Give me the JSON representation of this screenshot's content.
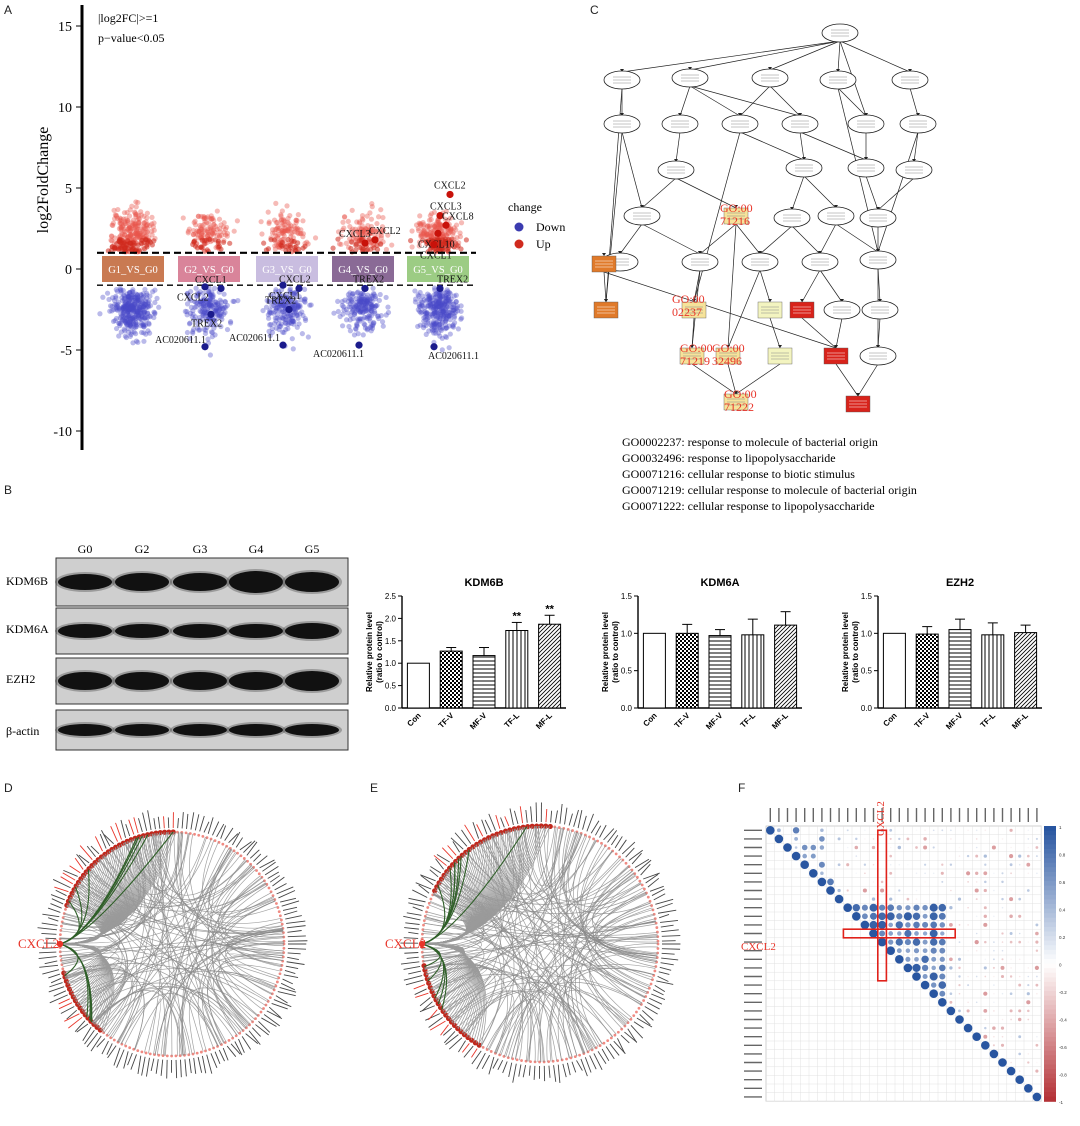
{
  "panels": {
    "a": "A",
    "b": "B",
    "c": "C",
    "d": "D",
    "e": "E",
    "f": "F"
  },
  "volcano": {
    "ylabel": "log2FoldChange",
    "yticks": [
      15,
      10,
      5,
      0,
      -5,
      -10
    ],
    "ylim": [
      -11,
      16
    ],
    "thresholds": [
      1,
      -1
    ],
    "annot_fc": "|log2FC|>=1",
    "annot_p": "p−value<0.05",
    "legend_title": "change",
    "legend_down": "Down",
    "legend_up": "Up",
    "color_down": "#3b3bb0",
    "color_up": "#d02a1e",
    "groups": [
      {
        "label": "G1_VS_G0",
        "color": "#c97a52"
      },
      {
        "label": "G2_VS_G0",
        "color": "#d9849a"
      },
      {
        "label": "G3_VS_G0",
        "color": "#c9bde0"
      },
      {
        "label": "G4_VS_G0",
        "color": "#8a6a96"
      },
      {
        "label": "G5_VS_G0",
        "color": "#9ccc84"
      }
    ],
    "genes": [
      {
        "g": 1,
        "name": "CXCL2",
        "y": -1.2,
        "dir": "down"
      },
      {
        "g": 1,
        "name": "CXCL1",
        "y": -1.1,
        "dir": "down"
      },
      {
        "g": 1,
        "name": "TREX2",
        "y": -2.8,
        "dir": "down"
      },
      {
        "g": 1,
        "name": "AC020611.1",
        "y": -4.8,
        "dir": "down"
      },
      {
        "g": 2,
        "name": "CXCL2",
        "y": -1.2,
        "dir": "down"
      },
      {
        "g": 2,
        "name": "CXCL1",
        "y": -1.0,
        "dir": "down"
      },
      {
        "g": 2,
        "name": "TREX2",
        "y": -2.5,
        "dir": "down"
      },
      {
        "g": 2,
        "name": "AC020611.1",
        "y": -4.7,
        "dir": "down"
      },
      {
        "g": 3,
        "name": "CXCL2",
        "y": 1.8,
        "dir": "up"
      },
      {
        "g": 3,
        "name": "CXCL3",
        "y": 1.6,
        "dir": "up"
      },
      {
        "g": 3,
        "name": "TREX2",
        "y": -1.2,
        "dir": "down"
      },
      {
        "g": 3,
        "name": "AC020611.1",
        "y": -4.7,
        "dir": "down"
      },
      {
        "g": 4,
        "name": "CXCL2",
        "y": 4.6,
        "dir": "up"
      },
      {
        "g": 4,
        "name": "CXCL3",
        "y": 3.3,
        "dir": "up"
      },
      {
        "g": 4,
        "name": "CXCL8",
        "y": 2.7,
        "dir": "up"
      },
      {
        "g": 4,
        "name": "CXCL10",
        "y": 2.2,
        "dir": "up"
      },
      {
        "g": 4,
        "name": "CXCL1",
        "y": 1.5,
        "dir": "up"
      },
      {
        "g": 4,
        "name": "TREX2",
        "y": -1.2,
        "dir": "down"
      },
      {
        "g": 4,
        "name": "AC020611.1",
        "y": -4.8,
        "dir": "down"
      }
    ]
  },
  "go": {
    "hl_labels": [
      "GO:00\n71216",
      "GO:00\n02237",
      "GO:00\n71219",
      "GO:00\n32496",
      "GO:00\n71222"
    ],
    "legend": [
      "GO0002237:  response to molecule of bacterial origin",
      "GO0032496:  response to lipopolysaccharide",
      "GO0071216:  cellular response to biotic stimulus",
      "GO0071219:  cellular response to molecule of bacterial origin",
      "GO0071222:  cellular response to lipopolysaccharide"
    ]
  },
  "blot": {
    "lanes": [
      "G0",
      "G2",
      "G3",
      "G4",
      "G5"
    ],
    "proteins": [
      "KDM6B",
      "KDM6A",
      "EZH2",
      "β-actin"
    ]
  },
  "chart_data": [
    {
      "type": "bar",
      "title": "KDM6B",
      "ylabel": "Relative protein level\n(ratio to control)",
      "categories": [
        "Con",
        "TF-V",
        "MF-V",
        "TF-L",
        "MF-L"
      ],
      "values": [
        1.0,
        1.27,
        1.17,
        1.73,
        1.87
      ],
      "errors": [
        0.0,
        0.08,
        0.18,
        0.18,
        0.2
      ],
      "sig": [
        "",
        "",
        "",
        "**",
        "**"
      ],
      "ylim": [
        0.0,
        2.5
      ],
      "yticks": [
        0.0,
        0.5,
        1.0,
        1.5,
        2.0,
        2.5
      ]
    },
    {
      "type": "bar",
      "title": "KDM6A",
      "ylabel": "Relative protein level\n(ratio to control)",
      "categories": [
        "Con",
        "TF-V",
        "MF-V",
        "TF-L",
        "MF-L"
      ],
      "values": [
        1.0,
        1.0,
        0.97,
        0.98,
        1.11
      ],
      "errors": [
        0.0,
        0.12,
        0.08,
        0.21,
        0.18
      ],
      "sig": [
        "",
        "",
        "",
        "",
        ""
      ],
      "ylim": [
        0.0,
        1.5
      ],
      "yticks": [
        0.0,
        0.5,
        1.0,
        1.5
      ]
    },
    {
      "type": "bar",
      "title": "EZH2",
      "ylabel": "Relative protein level\n(ratio to control)",
      "categories": [
        "Con",
        "TF-V",
        "MF-V",
        "TF-L",
        "MF-L"
      ],
      "values": [
        1.0,
        0.99,
        1.05,
        0.98,
        1.01
      ],
      "errors": [
        0.0,
        0.1,
        0.14,
        0.16,
        0.1
      ],
      "sig": [
        "",
        "",
        "",
        "",
        ""
      ],
      "ylim": [
        0.0,
        1.5
      ],
      "yticks": [
        0.0,
        0.5,
        1.0,
        1.5
      ]
    }
  ],
  "circos": {
    "hub": "CXCL2"
  },
  "corr": {
    "hl_label": "CXCL2",
    "scale": [
      "1",
      "0.8",
      "0.6",
      "0.4",
      "0.2",
      "0",
      "-0.2",
      "-0.4",
      "-0.6",
      "-0.8",
      "-1"
    ]
  }
}
